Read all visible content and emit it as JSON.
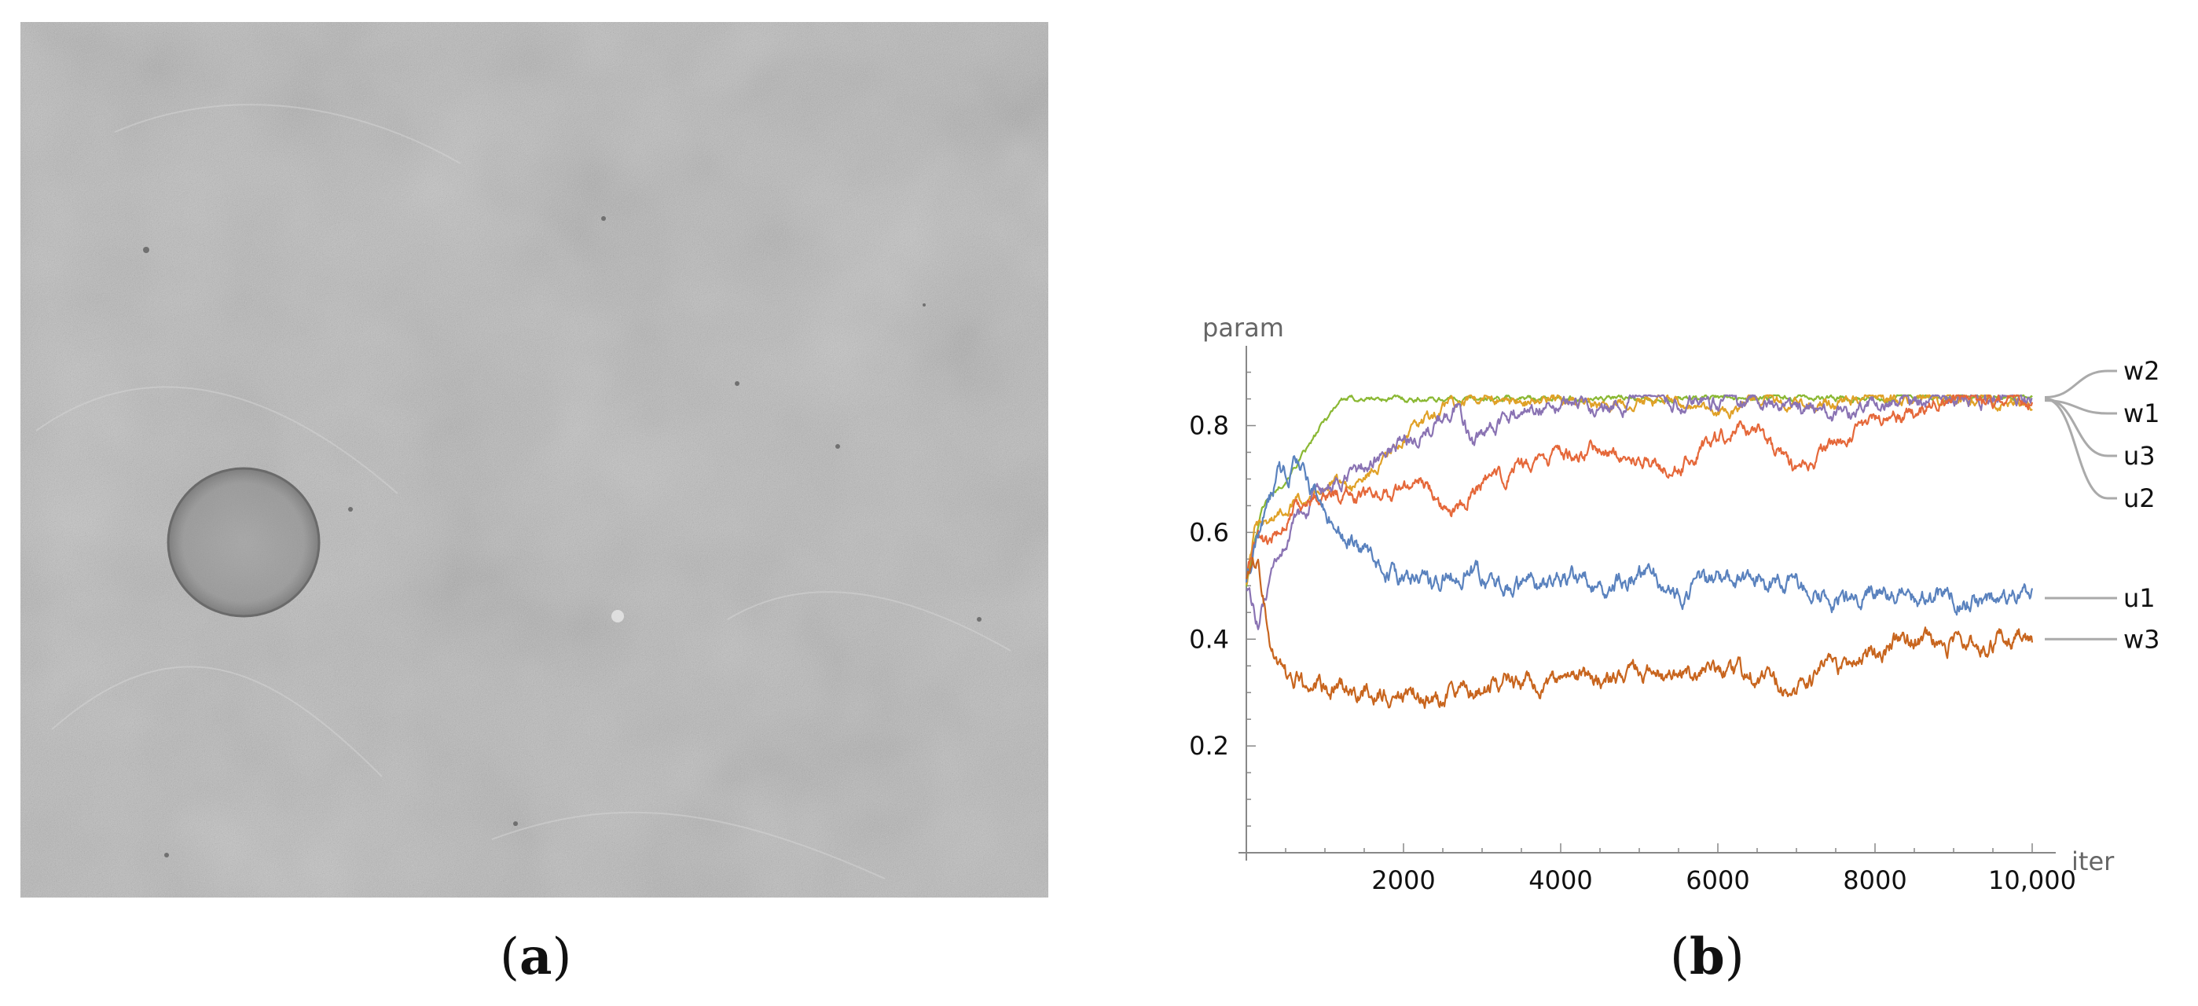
{
  "panels": {
    "a": {
      "label": "a"
    },
    "b": {
      "label": "b"
    }
  },
  "chart_data": {
    "type": "line",
    "xlabel": "iter",
    "ylabel": "param",
    "xlim": [
      0,
      10000
    ],
    "ylim": [
      0.0,
      0.92
    ],
    "x_ticks": [
      2000,
      4000,
      6000,
      8000,
      10000
    ],
    "x_tick_labels": [
      "2000",
      "4000",
      "6000",
      "8000",
      "10,000"
    ],
    "y_ticks": [
      0.2,
      0.4,
      0.6,
      0.8
    ],
    "y_tick_labels": [
      "0.2",
      "0.4",
      "0.6",
      "0.8"
    ],
    "grid": false,
    "legend": "right",
    "series": [
      {
        "name": "w2",
        "color": "#8ab833",
        "noise": 0.003,
        "points": [
          [
            0,
            0.5
          ],
          [
            200,
            0.65
          ],
          [
            500,
            0.7
          ],
          [
            800,
            0.76
          ],
          [
            1000,
            0.81
          ],
          [
            1200,
            0.85
          ],
          [
            2000,
            0.85
          ],
          [
            10000,
            0.853
          ]
        ]
      },
      {
        "name": "w1",
        "color": "#e0a127",
        "noise": 0.006,
        "points": [
          [
            0,
            0.5
          ],
          [
            100,
            0.6
          ],
          [
            300,
            0.62
          ],
          [
            600,
            0.66
          ],
          [
            1000,
            0.69
          ],
          [
            1400,
            0.69
          ],
          [
            1800,
            0.74
          ],
          [
            2200,
            0.8
          ],
          [
            2600,
            0.84
          ],
          [
            3000,
            0.85
          ],
          [
            4500,
            0.84
          ],
          [
            5500,
            0.85
          ],
          [
            6000,
            0.82
          ],
          [
            6500,
            0.85
          ],
          [
            7500,
            0.84
          ],
          [
            8000,
            0.85
          ],
          [
            10000,
            0.847
          ]
        ]
      },
      {
        "name": "u3",
        "color": "#8a73b3",
        "noise": 0.008,
        "points": [
          [
            0,
            0.5
          ],
          [
            150,
            0.43
          ],
          [
            300,
            0.5
          ],
          [
            600,
            0.62
          ],
          [
            900,
            0.66
          ],
          [
            1300,
            0.7
          ],
          [
            1700,
            0.74
          ],
          [
            2000,
            0.77
          ],
          [
            2500,
            0.81
          ],
          [
            2700,
            0.84
          ],
          [
            2900,
            0.76
          ],
          [
            3300,
            0.81
          ],
          [
            3700,
            0.84
          ],
          [
            4000,
            0.85
          ],
          [
            4500,
            0.83
          ],
          [
            5000,
            0.85
          ],
          [
            5800,
            0.84
          ],
          [
            6500,
            0.85
          ],
          [
            7000,
            0.83
          ],
          [
            7500,
            0.82
          ],
          [
            8000,
            0.84
          ],
          [
            9000,
            0.85
          ],
          [
            10000,
            0.85
          ]
        ]
      },
      {
        "name": "u2",
        "color": "#e5683a",
        "noise": 0.008,
        "points": [
          [
            0,
            0.52
          ],
          [
            150,
            0.6
          ],
          [
            300,
            0.57
          ],
          [
            600,
            0.65
          ],
          [
            1000,
            0.67
          ],
          [
            1500,
            0.67
          ],
          [
            2000,
            0.68
          ],
          [
            2300,
            0.7
          ],
          [
            2600,
            0.63
          ],
          [
            3000,
            0.69
          ],
          [
            3500,
            0.72
          ],
          [
            4000,
            0.74
          ],
          [
            4500,
            0.76
          ],
          [
            5000,
            0.74
          ],
          [
            5500,
            0.72
          ],
          [
            6000,
            0.78
          ],
          [
            6500,
            0.79
          ],
          [
            7000,
            0.71
          ],
          [
            7500,
            0.77
          ],
          [
            8000,
            0.8
          ],
          [
            8500,
            0.83
          ],
          [
            9000,
            0.85
          ],
          [
            10000,
            0.85
          ]
        ]
      },
      {
        "name": "u1",
        "color": "#5a82be",
        "noise": 0.01,
        "points": [
          [
            0,
            0.5
          ],
          [
            200,
            0.62
          ],
          [
            400,
            0.7
          ],
          [
            700,
            0.73
          ],
          [
            900,
            0.65
          ],
          [
            1200,
            0.6
          ],
          [
            1500,
            0.56
          ],
          [
            2000,
            0.51
          ],
          [
            2500,
            0.51
          ],
          [
            2800,
            0.54
          ],
          [
            3200,
            0.49
          ],
          [
            3600,
            0.5
          ],
          [
            4000,
            0.51
          ],
          [
            4500,
            0.5
          ],
          [
            5000,
            0.52
          ],
          [
            5500,
            0.49
          ],
          [
            6000,
            0.52
          ],
          [
            6500,
            0.5
          ],
          [
            7000,
            0.5
          ],
          [
            7500,
            0.48
          ],
          [
            8000,
            0.49
          ],
          [
            8500,
            0.48
          ],
          [
            9000,
            0.48
          ],
          [
            9500,
            0.47
          ],
          [
            10000,
            0.477
          ]
        ]
      },
      {
        "name": "w3",
        "color": "#c8651e",
        "noise": 0.01,
        "points": [
          [
            0,
            0.52
          ],
          [
            150,
            0.56
          ],
          [
            250,
            0.46
          ],
          [
            350,
            0.38
          ],
          [
            500,
            0.33
          ],
          [
            800,
            0.31
          ],
          [
            1500,
            0.3
          ],
          [
            2000,
            0.3
          ],
          [
            2500,
            0.29
          ],
          [
            3000,
            0.31
          ],
          [
            3500,
            0.32
          ],
          [
            4000,
            0.32
          ],
          [
            4500,
            0.32
          ],
          [
            5000,
            0.33
          ],
          [
            5500,
            0.34
          ],
          [
            6000,
            0.34
          ],
          [
            6500,
            0.33
          ],
          [
            7000,
            0.31
          ],
          [
            7500,
            0.35
          ],
          [
            8000,
            0.37
          ],
          [
            8300,
            0.4
          ],
          [
            9000,
            0.39
          ],
          [
            10000,
            0.4
          ]
        ]
      }
    ]
  }
}
